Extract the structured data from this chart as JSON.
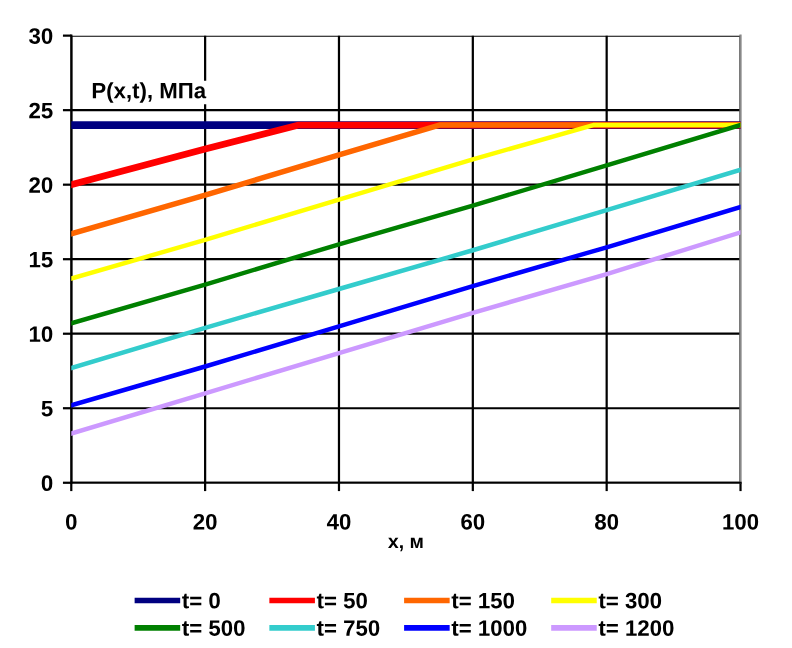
{
  "chart_data": {
    "type": "line",
    "xlabel": "x, м",
    "ylabel": "P(x,t), МПа",
    "xlim": [
      0,
      100
    ],
    "xticks": [
      0,
      20,
      40,
      60,
      80,
      100
    ],
    "ylim": [
      0,
      30
    ],
    "yticks": [
      0,
      5,
      10,
      15,
      20,
      25,
      30
    ],
    "grid": true,
    "legend": "bottom",
    "marker": "none",
    "line_style": "solid",
    "series": [
      {
        "name": "t= 0",
        "color": "#000080",
        "x": [
          0,
          100
        ],
        "values": [
          24,
          24
        ]
      },
      {
        "name": "t= 50",
        "color": "#ff0000",
        "x": [
          0,
          20,
          34,
          100
        ],
        "values": [
          20,
          22.4,
          24,
          24
        ]
      },
      {
        "name": "t= 150",
        "color": "#ff6600",
        "x": [
          0,
          20,
          40,
          55,
          100
        ],
        "values": [
          16.7,
          19.3,
          22,
          24,
          24
        ]
      },
      {
        "name": "t= 300",
        "color": "#ffff00",
        "x": [
          0,
          20,
          40,
          60,
          78,
          100
        ],
        "values": [
          13.7,
          16.3,
          19,
          21.7,
          24,
          24
        ]
      },
      {
        "name": "t= 500",
        "color": "#008000",
        "x": [
          0,
          20,
          40,
          60,
          80,
          100
        ],
        "values": [
          10.7,
          13.3,
          16,
          18.6,
          21.3,
          24
        ]
      },
      {
        "name": "t= 750",
        "color": "#33cccc",
        "x": [
          0,
          20,
          40,
          60,
          80,
          100
        ],
        "values": [
          7.7,
          10.4,
          13,
          15.6,
          18.3,
          21
        ]
      },
      {
        "name": "t= 1000",
        "color": "#0000ff",
        "x": [
          0,
          20,
          40,
          60,
          80,
          100
        ],
        "values": [
          5.2,
          7.8,
          10.5,
          13.2,
          15.8,
          18.5
        ]
      },
      {
        "name": "t= 1200",
        "color": "#cc99ff",
        "x": [
          0,
          20,
          40,
          60,
          80,
          100
        ],
        "values": [
          3.3,
          6,
          8.7,
          11.4,
          14,
          16.8
        ]
      }
    ]
  }
}
